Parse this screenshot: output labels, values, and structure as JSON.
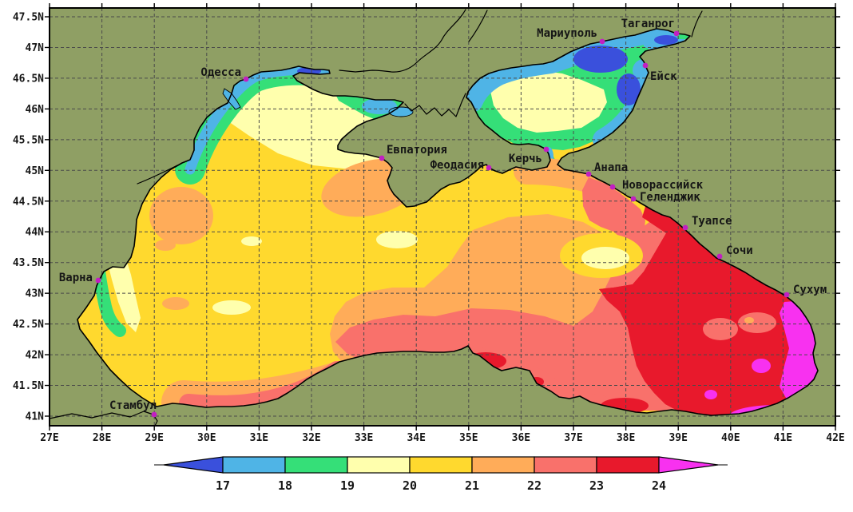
{
  "map": {
    "lat_ticks": [
      "47.5N",
      "47N",
      "46.5N",
      "46N",
      "45.5N",
      "45N",
      "44.5N",
      "44N",
      "43.5N",
      "43N",
      "42.5N",
      "42N",
      "41.5N",
      "41N"
    ],
    "lon_ticks": [
      "27E",
      "28E",
      "29E",
      "30E",
      "31E",
      "32E",
      "33E",
      "34E",
      "35E",
      "36E",
      "37E",
      "38E",
      "39E",
      "40E",
      "41E",
      "42E"
    ],
    "cities": [
      {
        "name": "Одесса",
        "dot": [
          308,
          99
        ],
        "label": [
          302,
          95
        ],
        "anchor": "end"
      },
      {
        "name": "Мариуполь",
        "dot": [
          754,
          52
        ],
        "label": [
          748,
          46
        ],
        "anchor": "end"
      },
      {
        "name": "Таганрог",
        "dot": [
          847,
          42
        ],
        "label": [
          845,
          34
        ],
        "anchor": "end"
      },
      {
        "name": "Ейск",
        "dot": [
          808,
          82
        ],
        "label": [
          814,
          100
        ],
        "anchor": "start"
      },
      {
        "name": "Евпатория",
        "dot": [
          478,
          198
        ],
        "label": [
          484,
          192
        ],
        "anchor": "start"
      },
      {
        "name": "Феодасия",
        "dot": [
          612,
          210
        ],
        "label": [
          606,
          211
        ],
        "anchor": "end"
      },
      {
        "name": "Керчь",
        "dot": [
          684,
          187
        ],
        "label": [
          679,
          203
        ],
        "anchor": "end"
      },
      {
        "name": "Анапа",
        "dot": [
          737,
          218
        ],
        "label": [
          744,
          214
        ],
        "anchor": "start"
      },
      {
        "name": "Новорассийск",
        "dot": [
          767,
          234
        ],
        "label": [
          779,
          236
        ],
        "anchor": "start"
      },
      {
        "name": "Геленджик",
        "dot": [
          793,
          249
        ],
        "label": [
          801,
          251
        ],
        "anchor": "start"
      },
      {
        "name": "Туапсе",
        "dot": [
          858,
          285
        ],
        "label": [
          866,
          281
        ],
        "anchor": "start"
      },
      {
        "name": "Сочи",
        "dot": [
          901,
          321
        ],
        "label": [
          909,
          318
        ],
        "anchor": "start"
      },
      {
        "name": "Сухум",
        "dot": [
          985,
          369
        ],
        "label": [
          993,
          367
        ],
        "anchor": "start"
      },
      {
        "name": "Варна",
        "dot": [
          123,
          351
        ],
        "label": [
          116,
          352
        ],
        "anchor": "end"
      },
      {
        "name": "Стамбул",
        "dot": [
          193,
          519
        ],
        "label": [
          196,
          512
        ],
        "anchor": "end"
      }
    ]
  },
  "legend": {
    "values": [
      "17",
      "18",
      "19",
      "20",
      "21",
      "22",
      "23",
      "24"
    ],
    "bands": [
      {
        "label": "<17",
        "color": "#3A50DC"
      },
      {
        "label": "17-18",
        "color": "#4FB4E6"
      },
      {
        "label": "18-19",
        "color": "#35DF78"
      },
      {
        "label": "19-20",
        "color": "#FFFFAD"
      },
      {
        "label": "20-21",
        "color": "#FFD92E"
      },
      {
        "label": "21-22",
        "color": "#FFAC59"
      },
      {
        "label": "22-23",
        "color": "#F9716B"
      },
      {
        "label": "23-24",
        "color": "#E8192C"
      },
      {
        "label": ">24",
        "color": "#F831F0"
      }
    ]
  },
  "colors": {
    "land": "#8F9F64",
    "grid": "#4A4A4A",
    "coast": "#000000",
    "city_dot": "#C21FC2",
    "label_text": "#161616"
  },
  "chart_data": {
    "type": "heatmap",
    "title": "",
    "legend_values": [
      17,
      18,
      19,
      20,
      21,
      22,
      23,
      24
    ],
    "legend_colors": [
      "#3A50DC",
      "#4FB4E6",
      "#35DF78",
      "#FFFFAD",
      "#FFD92E",
      "#FFAC59",
      "#F9716B",
      "#E8192C",
      "#F831F0"
    ],
    "legend_position": "bottom",
    "x_ticks": [
      "27E",
      "28E",
      "29E",
      "30E",
      "31E",
      "32E",
      "33E",
      "34E",
      "35E",
      "36E",
      "37E",
      "38E",
      "39E",
      "40E",
      "41E",
      "42E"
    ],
    "y_ticks": [
      "47.5N",
      "47N",
      "46.5N",
      "46N",
      "45.5N",
      "45N",
      "44.5N",
      "44N",
      "43.5N",
      "43N",
      "42.5N",
      "42N",
      "41.5N",
      "41N"
    ],
    "grid": true
  }
}
